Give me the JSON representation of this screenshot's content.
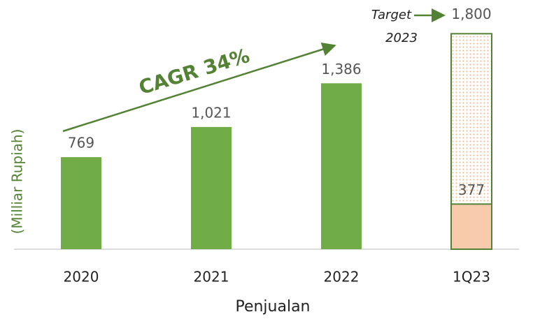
{
  "chart_data": {
    "type": "bar",
    "categories": [
      "2020",
      "2021",
      "2022",
      "1Q23"
    ],
    "values": [
      769,
      1021,
      1386,
      377
    ],
    "value_labels": [
      "769",
      "1,021",
      "1,386",
      "377"
    ],
    "color": "#70ad47",
    "highlight_color": "#f8cbad",
    "outline_color": "#548235",
    "target_values": [
      null,
      null,
      null,
      1800
    ],
    "target_value_labels": [
      null,
      null,
      null,
      "1,800"
    ],
    "target_label": [
      "Target",
      "2023"
    ],
    "annotation": "CAGR 34%",
    "xlabel": "Penjualan",
    "ylabel": "(Milliar Rupiah)",
    "ylim": [
      0,
      2000
    ]
  }
}
